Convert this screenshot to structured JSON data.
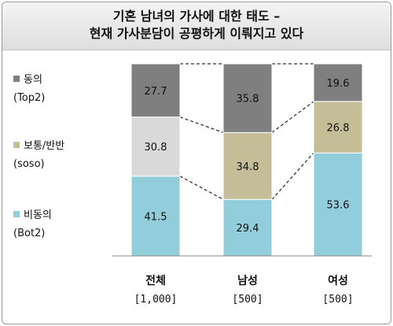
{
  "chart_data": {
    "type": "bar",
    "stacked": true,
    "percent_stacked": true,
    "title_lines": [
      "기혼 남녀의 가사에 대한 태도 –",
      "현재 가사분담이 공평하게 이뤄지고 있다"
    ],
    "categories": [
      {
        "name": "전체",
        "n": "[1,000]"
      },
      {
        "name": "남성",
        "n": "[500]"
      },
      {
        "name": "여성",
        "n": "[500]"
      }
    ],
    "series": [
      {
        "name": "비동의",
        "sub": "(Bot2)",
        "color": "#92cddc",
        "values": [
          41.5,
          29.4,
          53.6
        ]
      },
      {
        "name": "보통/반반",
        "sub": "(soso)",
        "color": "#c4bd97",
        "values": [
          30.8,
          34.8,
          26.8
        ]
      },
      {
        "name": "동의",
        "sub": "(Top2)",
        "color": "#7f7f7f",
        "values": [
          27.7,
          35.8,
          19.6
        ]
      }
    ],
    "overall_series_colors": [
      "#92cddc",
      "#d9d9d9",
      "#7f7f7f"
    ],
    "data_labels": [
      [
        "41.5",
        "30.8",
        "27.7"
      ],
      [
        "29.4",
        "34.8",
        "35.8"
      ],
      [
        "53.6",
        "26.8",
        "19.6"
      ]
    ],
    "legend_position": "left",
    "connector_lines": "dashed",
    "ylim": [
      0,
      100
    ]
  }
}
